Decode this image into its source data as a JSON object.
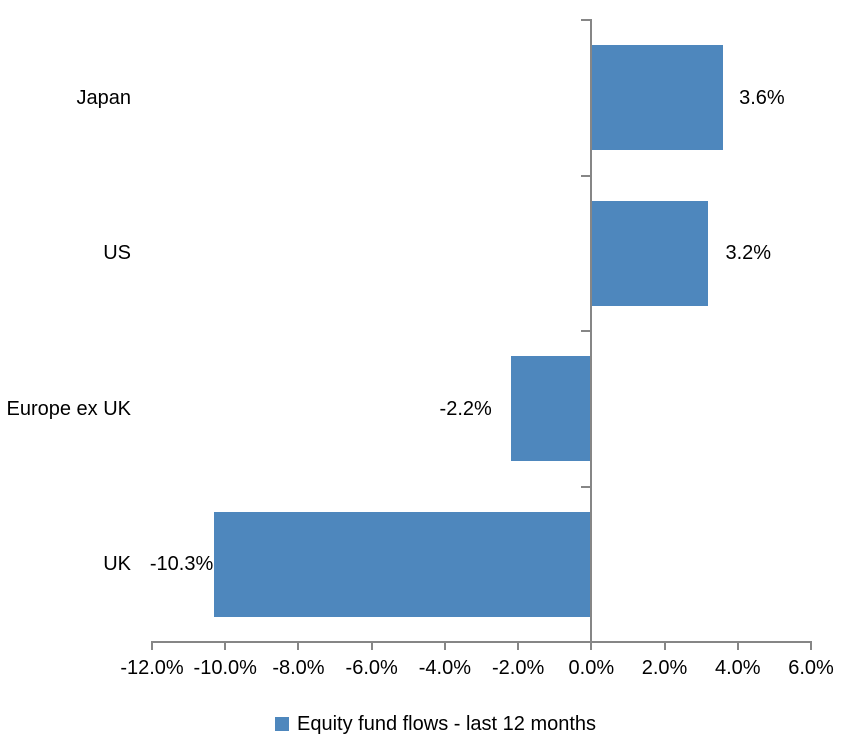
{
  "chart_data": {
    "type": "bar",
    "orientation": "horizontal",
    "title": "",
    "categories": [
      "Japan",
      "US",
      "Europe ex UK",
      "UK"
    ],
    "values": [
      3.6,
      3.2,
      -2.2,
      -10.3
    ],
    "data_labels": [
      "3.6%",
      "3.2%",
      "-2.2%",
      "-10.3%"
    ],
    "xlim": [
      -12,
      6
    ],
    "x_tick_step": 2,
    "x_tick_labels": [
      "-12.0%",
      "-10.0%",
      "-8.0%",
      "-6.0%",
      "-4.0%",
      "-2.0%",
      "0.0%",
      "2.0%",
      "4.0%",
      "6.0%"
    ],
    "grid": false,
    "legend": "Equity fund flows - last 12 months",
    "legend_position": "bottom",
    "colors": {
      "bar": "#4e87bd",
      "axis": "#868686",
      "text": "#000000"
    }
  }
}
